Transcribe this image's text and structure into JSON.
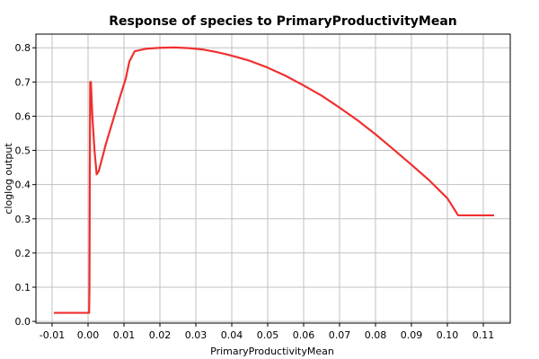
{
  "chart_data": {
    "type": "line",
    "title": "Response of species to PrimaryProductivityMean",
    "xlabel": "PrimaryProductivityMean",
    "ylabel": "cloglog output",
    "xlim": [
      -0.0145,
      0.1175
    ],
    "ylim": [
      -0.005,
      0.84
    ],
    "xticks": [
      -0.01,
      0.0,
      0.01,
      0.02,
      0.03,
      0.04,
      0.05,
      0.06,
      0.07,
      0.08,
      0.09,
      0.1,
      0.11
    ],
    "xtick_labels": [
      "-0.01",
      "0.00",
      "0.01",
      "0.02",
      "0.03",
      "0.04",
      "0.05",
      "0.06",
      "0.07",
      "0.08",
      "0.09",
      "0.10",
      "0.11"
    ],
    "yticks": [
      0.0,
      0.1,
      0.2,
      0.3,
      0.4,
      0.5,
      0.6,
      0.7,
      0.8
    ],
    "ytick_labels": [
      "0.0",
      "0.1",
      "0.2",
      "0.3",
      "0.4",
      "0.5",
      "0.6",
      "0.7",
      "0.8"
    ],
    "grid": true,
    "series_color": "#f03030",
    "series": [
      {
        "x": [
          -0.0095,
          0.0003,
          0.0004,
          0.0005,
          0.0006,
          0.0008,
          0.0012,
          0.0018,
          0.0024,
          0.003,
          0.004,
          0.005,
          0.007,
          0.009,
          0.0105,
          0.0115,
          0.013,
          0.016,
          0.02,
          0.024,
          0.028,
          0.032,
          0.036,
          0.04,
          0.045,
          0.05,
          0.055,
          0.06,
          0.065,
          0.07,
          0.075,
          0.08,
          0.085,
          0.09,
          0.095,
          0.1,
          0.103,
          0.106,
          0.109,
          0.113
        ],
        "y": [
          0.025,
          0.025,
          0.1,
          0.45,
          0.7,
          0.7,
          0.6,
          0.5,
          0.43,
          0.44,
          0.48,
          0.52,
          0.59,
          0.66,
          0.71,
          0.76,
          0.79,
          0.797,
          0.8,
          0.801,
          0.799,
          0.795,
          0.787,
          0.777,
          0.762,
          0.742,
          0.718,
          0.69,
          0.66,
          0.625,
          0.588,
          0.547,
          0.503,
          0.458,
          0.412,
          0.36,
          0.31,
          0.31,
          0.31,
          0.31
        ]
      }
    ]
  }
}
